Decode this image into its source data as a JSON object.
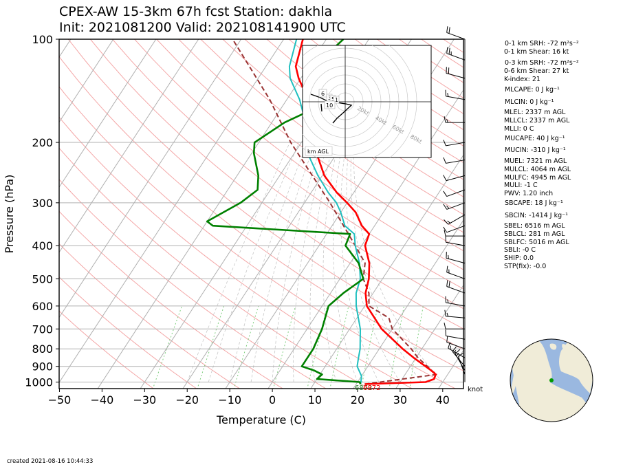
{
  "header": {
    "title_line1": "CPEX-AW 15-3km  67h fcst  Station: dakhla",
    "title_line2": "Init: 2021081200  Valid: 202108141900 UTC"
  },
  "footer": {
    "created": "created 2021-08-16 10:44:33"
  },
  "chart_data": {
    "type": "skewt",
    "xlabel": "Temperature (C)",
    "ylabel": "Pressure (hPa)",
    "xlim": [
      -50,
      45
    ],
    "ylim_hpa": [
      1050,
      100
    ],
    "x_ticks": [
      "−50",
      "−40",
      "−30",
      "−20",
      "−10",
      "0",
      "10",
      "20",
      "30",
      "40"
    ],
    "x_tick_values": [
      -50,
      -40,
      -30,
      -20,
      -10,
      0,
      10,
      20,
      30,
      40
    ],
    "y_ticks": [
      "100",
      "200",
      "300",
      "400",
      "500",
      "600",
      "700",
      "800",
      "900",
      "1000"
    ],
    "y_tick_values": [
      100,
      200,
      300,
      400,
      500,
      600,
      700,
      800,
      900,
      1000
    ],
    "colors": {
      "temperature": "#ff0000",
      "dewpoint": "#008000",
      "wetbulb": "#1fbfbf",
      "parcel": "#993333",
      "isobar": "#b0b0b0",
      "isotherm": "#b0b0b0",
      "dry_adiabat": "#f4a6a6",
      "mixing_ratio": "#7fcf7f"
    },
    "series": [
      {
        "key": "temperature",
        "points": [
          [
            1014,
            22
          ],
          [
            1000,
            36
          ],
          [
            980,
            37.5
          ],
          [
            950,
            37.2
          ],
          [
            925,
            35.5
          ],
          [
            850,
            29.5
          ],
          [
            800,
            25.5
          ],
          [
            700,
            17.5
          ],
          [
            600,
            10.5
          ],
          [
            550,
            8.2
          ],
          [
            500,
            6.8
          ],
          [
            450,
            4.5
          ],
          [
            400,
            0.8
          ],
          [
            370,
            0
          ],
          [
            350,
            -3
          ],
          [
            320,
            -6.5
          ],
          [
            300,
            -10
          ],
          [
            280,
            -14
          ],
          [
            250,
            -19.5
          ],
          [
            220,
            -24
          ],
          [
            200,
            -27
          ],
          [
            170,
            -31
          ],
          [
            150,
            -35
          ],
          [
            130,
            -40.5
          ],
          [
            120,
            -43
          ],
          [
            100,
            -45.5
          ]
        ]
      },
      {
        "key": "dewpoint",
        "points": [
          [
            1014,
            21
          ],
          [
            1000,
            20.5
          ],
          [
            980,
            10
          ],
          [
            950,
            10.5
          ],
          [
            925,
            8
          ],
          [
            900,
            4.5
          ],
          [
            850,
            4.5
          ],
          [
            800,
            4.5
          ],
          [
            700,
            3.5
          ],
          [
            600,
            1.5
          ],
          [
            550,
            3
          ],
          [
            500,
            5.5
          ],
          [
            450,
            2
          ],
          [
            400,
            -3.8
          ],
          [
            370,
            -4.5
          ],
          [
            350,
            -38
          ],
          [
            340,
            -40
          ],
          [
            300,
            -35
          ],
          [
            275,
            -33
          ],
          [
            250,
            -35
          ],
          [
            215,
            -39.5
          ],
          [
            200,
            -41
          ],
          [
            175,
            -37
          ],
          [
            150,
            -29
          ],
          [
            140,
            -33
          ],
          [
            125,
            -37
          ],
          [
            115,
            -38
          ],
          [
            100,
            -36
          ]
        ]
      },
      {
        "key": "wetbulb",
        "points": [
          [
            1014,
            21
          ],
          [
            1000,
            20.8
          ],
          [
            960,
            20
          ],
          [
            900,
            17.5
          ],
          [
            850,
            16.5
          ],
          [
            800,
            15.5
          ],
          [
            700,
            12.5
          ],
          [
            600,
            8
          ],
          [
            550,
            6
          ],
          [
            500,
            4.8
          ],
          [
            450,
            2.2
          ],
          [
            400,
            -1.5
          ],
          [
            370,
            -3.5
          ],
          [
            350,
            -7
          ],
          [
            320,
            -10
          ],
          [
            300,
            -12.5
          ],
          [
            280,
            -16
          ],
          [
            250,
            -21
          ],
          [
            220,
            -26
          ],
          [
            200,
            -29
          ],
          [
            170,
            -33
          ],
          [
            150,
            -37
          ],
          [
            130,
            -42.5
          ],
          [
            120,
            -44.5
          ],
          [
            100,
            -47
          ]
        ]
      },
      {
        "key": "parcel",
        "points": [
          [
            1014,
            22
          ],
          [
            950,
            37.5
          ],
          [
            925,
            35.5
          ],
          [
            900,
            34
          ],
          [
            850,
            30.5
          ],
          [
            800,
            27.5
          ],
          [
            700,
            20
          ],
          [
            650,
            17.5
          ],
          [
            600,
            11
          ],
          [
            550,
            9
          ],
          [
            500,
            5.5
          ],
          [
            450,
            3.5
          ],
          [
            400,
            -1.5
          ],
          [
            300,
            -14
          ],
          [
            200,
            -32.5
          ],
          [
            150,
            -44
          ],
          [
            100,
            -62
          ]
        ]
      }
    ],
    "parcel_labels": [
      {
        "text": "6872",
        "color": "#2f7f2f"
      },
      {
        "text": "6872",
        "color": "#ff0000"
      }
    ],
    "wind_unit": "knot",
    "wind_barbs": [
      {
        "p": 100,
        "speed": 20,
        "dir": 290
      },
      {
        "p": 115,
        "speed": 25,
        "dir": 290
      },
      {
        "p": 130,
        "speed": 20,
        "dir": 285
      },
      {
        "p": 150,
        "speed": 15,
        "dir": 280
      },
      {
        "p": 175,
        "speed": 15,
        "dir": 270
      },
      {
        "p": 200,
        "speed": 10,
        "dir": 260
      },
      {
        "p": 225,
        "speed": 10,
        "dir": 260
      },
      {
        "p": 250,
        "speed": 10,
        "dir": 255
      },
      {
        "p": 275,
        "speed": 10,
        "dir": 250
      },
      {
        "p": 300,
        "speed": 15,
        "dir": 250
      },
      {
        "p": 325,
        "speed": 15,
        "dir": 240
      },
      {
        "p": 350,
        "speed": 10,
        "dir": 250
      },
      {
        "p": 375,
        "speed": 10,
        "dir": 270
      },
      {
        "p": 400,
        "speed": 10,
        "dir": 280
      },
      {
        "p": 450,
        "speed": 15,
        "dir": 285
      },
      {
        "p": 500,
        "speed": 15,
        "dir": 290
      },
      {
        "p": 550,
        "speed": 20,
        "dir": 290
      },
      {
        "p": 600,
        "speed": 15,
        "dir": 280
      },
      {
        "p": 650,
        "speed": 15,
        "dir": 275
      },
      {
        "p": 700,
        "speed": 10,
        "dir": 270
      },
      {
        "p": 750,
        "speed": 10,
        "dir": 280
      },
      {
        "p": 800,
        "speed": 10,
        "dir": 290
      },
      {
        "p": 850,
        "speed": 15,
        "dir": 300
      },
      {
        "p": 900,
        "speed": 15,
        "dir": 320
      },
      {
        "p": 925,
        "speed": 15,
        "dir": 330
      },
      {
        "p": 950,
        "speed": 10,
        "dir": 340
      }
    ]
  },
  "hodograph": {
    "label": "km AGL",
    "ring_labels": [
      "20kt",
      "40kt",
      "60kt",
      "80kt"
    ],
    "height_labels": [
      "6",
      "3",
      "5",
      "1",
      "10"
    ]
  },
  "indices": [
    "0-1 km SRH: -72 m²s⁻²",
    "0-1 km Shear: 16 kt",
    "0-3 km SRH: -72 m²s⁻²",
    "0-6 km Shear: 27 kt",
    "K-index: 21",
    "MLCAPE: 0 J kg⁻¹",
    "MLCIN: 0 J kg⁻¹",
    "MLEL: 2337 m AGL",
    "MLLCL: 2337 m AGL",
    "MLLI: 0 C",
    "MUCAPE: 40 J kg⁻¹",
    "MUCIN: -310 J kg⁻¹",
    "MUEL: 7321 m AGL",
    "MULCL: 4064 m AGL",
    "MULFC: 4945 m AGL",
    "MULI: -1 C",
    "PWV: 1.20 inch",
    "SBCAPE: 18 J kg⁻¹",
    "SBCIN: -1414 J kg⁻¹",
    "SBEL: 6516 m AGL",
    "SBLCL: 281 m AGL",
    "SBLFC: 5016 m AGL",
    "SBLI: -0 C",
    "SHIP: 0.0",
    "STP(fix): -0.0"
  ],
  "globe": {
    "ocean": "#9ab8e0",
    "land": "#f0ecd8",
    "station": "#009900"
  }
}
